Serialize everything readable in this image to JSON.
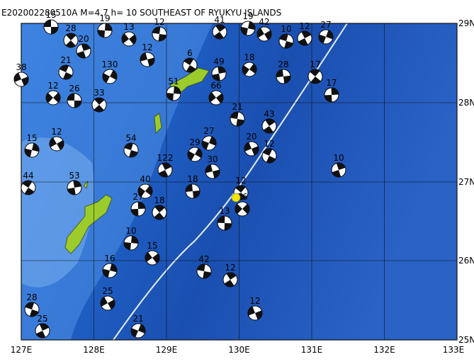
{
  "header": {
    "title": "E202002280510A M=4.7 h= 10 SOUTHEAST OF RYUKYU ISLANDS"
  },
  "axes": {
    "longitude": [
      "127E",
      "128E",
      "129E",
      "130E",
      "131E",
      "132E",
      "133E"
    ],
    "latitude": [
      "29N",
      "28N",
      "27N",
      "26N",
      "25N"
    ]
  },
  "events": [
    "15",
    "28",
    "19",
    "13",
    "12",
    "41",
    "19",
    "42",
    "10",
    "12",
    "27",
    "38",
    "21",
    "20",
    "130",
    "12",
    "6",
    "49",
    "18",
    "28",
    "17",
    "17",
    "12",
    "26",
    "33",
    "51",
    "66",
    "21",
    "43",
    "15",
    "12",
    "54",
    "122",
    "27",
    "20",
    "12",
    "10",
    "29",
    "30",
    "44",
    "53",
    "40",
    "18",
    "12",
    "27",
    "16",
    "13",
    "18",
    "10",
    "15",
    "42",
    "12",
    "16",
    "25",
    "28",
    "25",
    "21",
    "12"
  ]
}
